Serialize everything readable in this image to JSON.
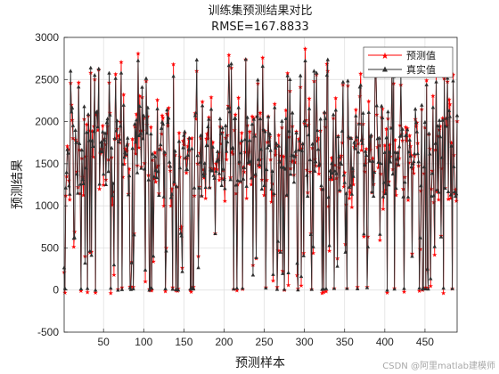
{
  "chart_data": {
    "type": "line",
    "title": "训练集预测结果对比",
    "subtitle": "RMSE=167.8833",
    "xlabel": "预测样本",
    "ylabel": "预测结果",
    "xlim": [
      1,
      490
    ],
    "ylim": [
      -500,
      3000
    ],
    "xticks": [
      50,
      100,
      150,
      200,
      250,
      300,
      350,
      400,
      450
    ],
    "yticks": [
      -500,
      0,
      500,
      1000,
      1500,
      2000,
      2500,
      3000
    ],
    "grid": true,
    "legend_position": "top-right",
    "series": [
      {
        "name": "预测值",
        "color": "#ff0000",
        "marker": "star",
        "key": "pred"
      },
      {
        "name": "真实值",
        "color": "#303030",
        "marker": "triangle-up",
        "key": "true"
      }
    ],
    "generator": {
      "n": 490,
      "seed": 11
    }
  },
  "watermark": "CSDN @阿里matlab建模师"
}
